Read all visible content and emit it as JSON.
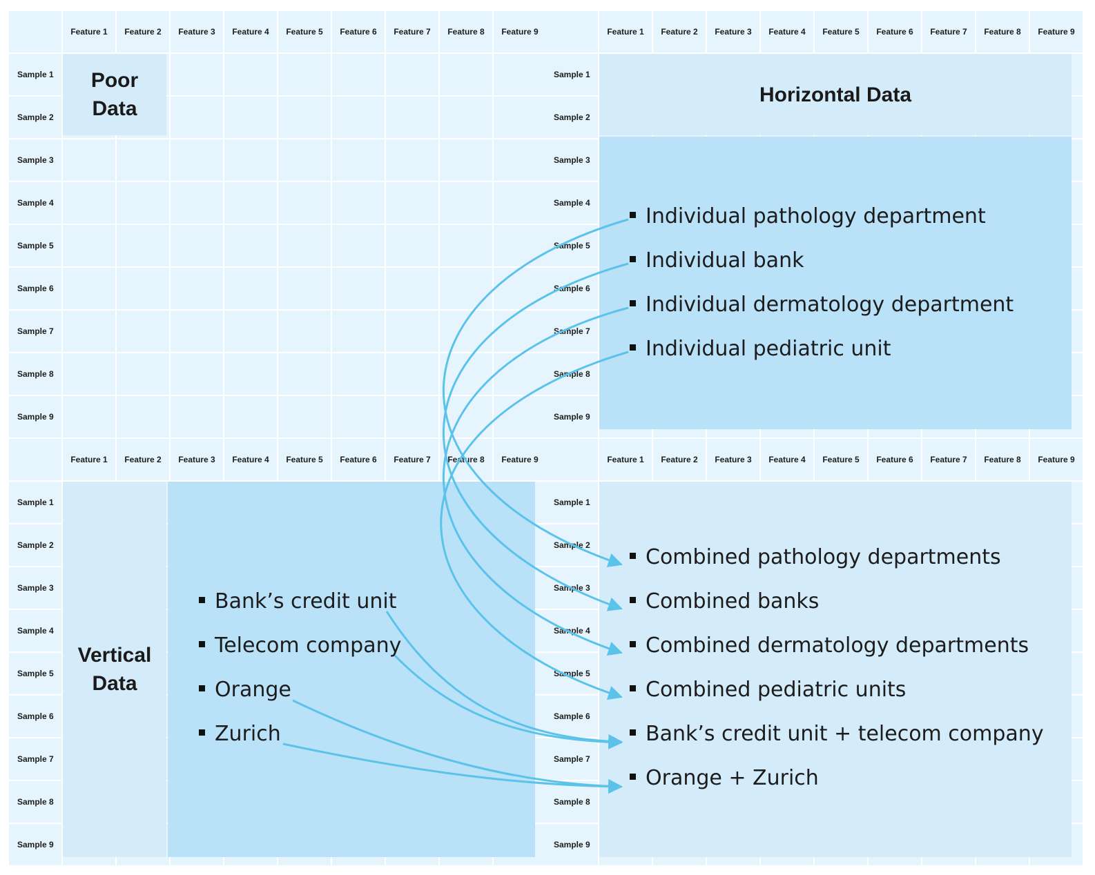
{
  "features": [
    "Feature 1",
    "Feature 2",
    "Feature 3",
    "Feature 4",
    "Feature 5",
    "Feature 6",
    "Feature 7",
    "Feature 8",
    "Feature 9"
  ],
  "samples": [
    "Sample 1",
    "Sample 2",
    "Sample 3",
    "Sample 4",
    "Sample 5",
    "Sample 6",
    "Sample 7",
    "Sample 8",
    "Sample 9"
  ],
  "panels": {
    "poor": {
      "title_line1": "Poor",
      "title_line2": "Data"
    },
    "horizontal": {
      "title": "Horizontal Data",
      "items": [
        "Individual pathology department",
        "Individual bank",
        "Individual dermatology department",
        "Individual pediatric unit"
      ]
    },
    "vertical": {
      "title_line1": "Vertical",
      "title_line2": "Data",
      "items": [
        "Bank’s credit unit",
        "Telecom company",
        "Orange",
        "Zurich"
      ]
    },
    "combined": {
      "items": [
        "Combined pathology departments",
        "Combined banks",
        "Combined dermatology departments",
        "Combined pediatric units",
        "Bank’s credit unit + telecom company",
        "Orange + Zurich"
      ]
    }
  },
  "colors": {
    "arrow": "#5bc2ea",
    "cell": "#e6f5fd",
    "light_block": "#d4ebf9",
    "mid_block": "#b9e1f7"
  }
}
